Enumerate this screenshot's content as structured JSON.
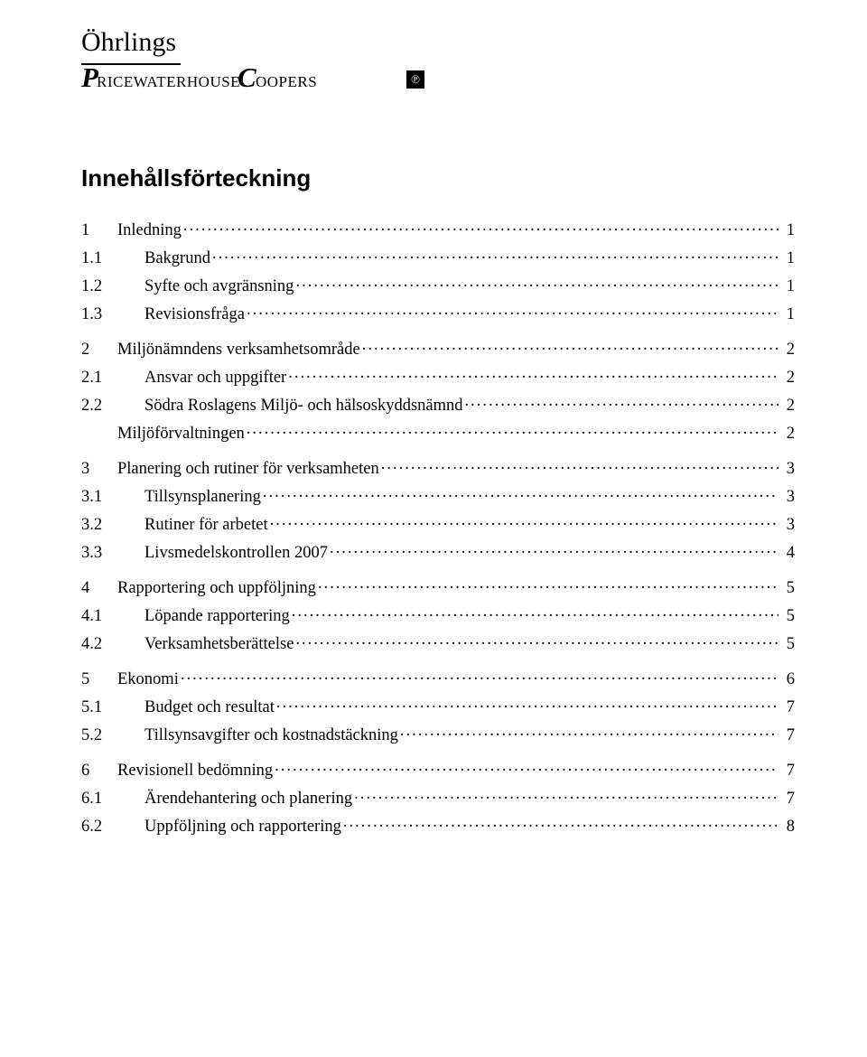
{
  "logo": {
    "top": "Öhrlings",
    "mark_glyph": "℗"
  },
  "title": "Innehållsförteckning",
  "toc": [
    {
      "level": 1,
      "num": "1",
      "label": "Inledning",
      "page": "1",
      "spaced": true
    },
    {
      "level": 2,
      "num": "1.1",
      "label": "Bakgrund",
      "page": "1"
    },
    {
      "level": 2,
      "num": "1.2",
      "label": "Syfte och avgränsning",
      "page": "1"
    },
    {
      "level": 2,
      "num": "1.3",
      "label": "Revisionsfråga",
      "page": "1"
    },
    {
      "level": 1,
      "num": "2",
      "label": "Miljönämndens verksamhetsområde",
      "page": "2",
      "spaced": true
    },
    {
      "level": 2,
      "num": "2.1",
      "label": "Ansvar och uppgifter",
      "page": "2"
    },
    {
      "level": 2,
      "num": "2.2",
      "label": "Södra Roslagens Miljö- och hälsoskyddsnämnd",
      "page": "2"
    },
    {
      "level": 0,
      "num": "",
      "label": "Miljöförvaltningen",
      "page": "2"
    },
    {
      "level": 1,
      "num": "3",
      "label": "Planering och rutiner för verksamheten",
      "page": "3",
      "spaced": true
    },
    {
      "level": 2,
      "num": "3.1",
      "label": "Tillsynsplanering",
      "page": "3"
    },
    {
      "level": 2,
      "num": "3.2",
      "label": "Rutiner för arbetet",
      "page": "3"
    },
    {
      "level": 2,
      "num": "3.3",
      "label": "Livsmedelskontrollen 2007",
      "page": "4"
    },
    {
      "level": 1,
      "num": "4",
      "label": "Rapportering och uppföljning",
      "page": "5",
      "spaced": true
    },
    {
      "level": 2,
      "num": "4.1",
      "label": "Löpande rapportering",
      "page": "5"
    },
    {
      "level": 2,
      "num": "4.2",
      "label": "Verksamhetsberättelse",
      "page": "5"
    },
    {
      "level": 1,
      "num": "5",
      "label": "Ekonomi",
      "page": "6",
      "spaced": true
    },
    {
      "level": 2,
      "num": "5.1",
      "label": "Budget och resultat",
      "page": "7"
    },
    {
      "level": 2,
      "num": "5.2",
      "label": "Tillsynsavgifter och kostnadstäckning",
      "page": "7"
    },
    {
      "level": 1,
      "num": "6",
      "label": "Revisionell bedömning",
      "page": "7",
      "spaced": true
    },
    {
      "level": 2,
      "num": "6.1",
      "label": "Ärendehantering och planering",
      "page": "7"
    },
    {
      "level": 2,
      "num": "6.2",
      "label": "Uppföljning och rapportering",
      "page": "8"
    }
  ]
}
